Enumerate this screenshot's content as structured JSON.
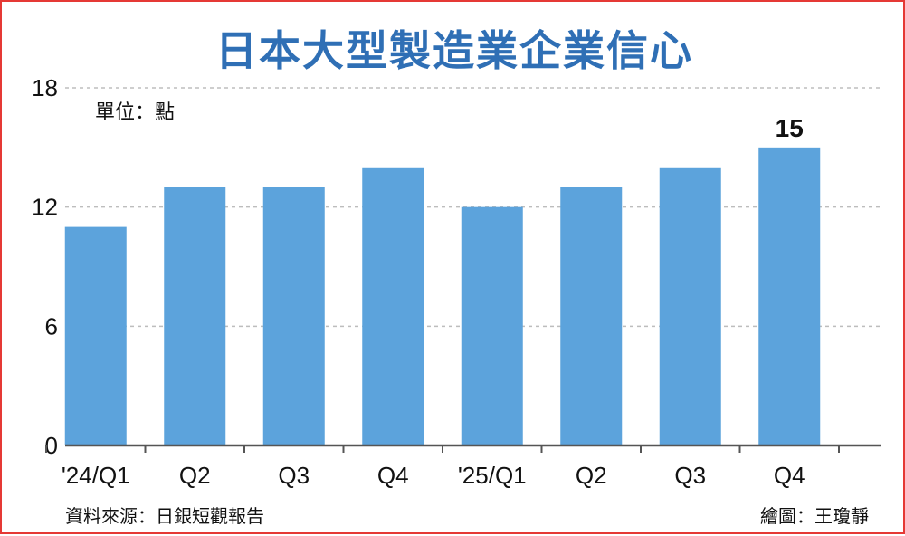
{
  "title": "日本大型製造業企業信心",
  "unit_label": "單位：點",
  "source": "資料來源：日銀短觀報告",
  "credit": "繪圖：王瓊靜",
  "colors": {
    "bar": "#5ca3dc",
    "title": "#2f6fb5",
    "border": "#e53935",
    "grid": "#bdbdbd"
  },
  "chart_data": {
    "type": "bar",
    "title": "日本大型製造業企業信心",
    "xlabel": "",
    "ylabel": "",
    "categories": [
      "'24/Q1",
      "Q2",
      "Q3",
      "Q4",
      "'25/Q1",
      "Q2",
      "Q3",
      "Q4"
    ],
    "values": [
      11,
      13,
      13,
      14,
      12,
      13,
      14,
      15
    ],
    "ylim": [
      0,
      18
    ],
    "yticks": [
      0,
      6,
      12,
      18
    ],
    "grid": true,
    "data_labels": [
      {
        "index": 7,
        "text": "15"
      }
    ]
  }
}
